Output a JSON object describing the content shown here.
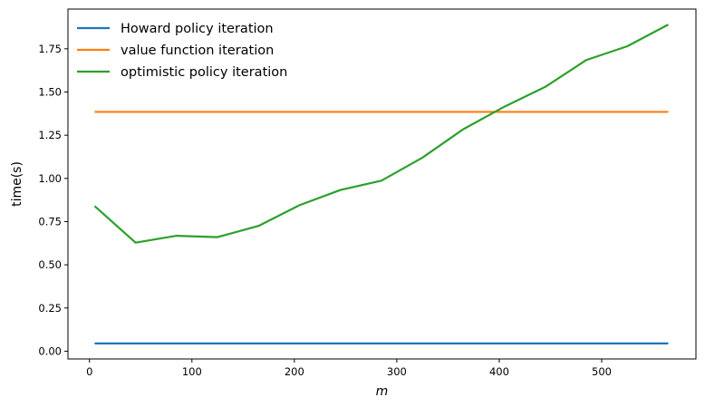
{
  "chart_data": {
    "type": "line",
    "title": "",
    "xlabel": "m",
    "ylabel": "time(s)",
    "xlim": [
      -21,
      592
    ],
    "ylim": [
      -0.045,
      1.98
    ],
    "xticks": [
      0,
      100,
      200,
      300,
      400,
      500
    ],
    "xtick_labels": [
      "0",
      "100",
      "200",
      "300",
      "400",
      "500"
    ],
    "yticks": [
      0.0,
      0.25,
      0.5,
      0.75,
      1.0,
      1.25,
      1.5,
      1.75
    ],
    "ytick_labels": [
      "0.00",
      "0.25",
      "0.50",
      "0.75",
      "1.00",
      "1.25",
      "1.50",
      "1.75"
    ],
    "grid": false,
    "legend_position": "upper-left",
    "x": [
      5,
      45,
      85,
      125,
      165,
      205,
      245,
      285,
      325,
      365,
      405,
      445,
      485,
      525,
      565
    ],
    "series": [
      {
        "name": "Howard policy iteration",
        "color": "#1f77b4",
        "values": [
          0.045,
          0.045,
          0.045,
          0.045,
          0.045,
          0.045,
          0.045,
          0.045,
          0.045,
          0.045,
          0.045,
          0.045,
          0.045,
          0.045,
          0.045
        ]
      },
      {
        "name": "value function iteration",
        "color": "#ff7f0e",
        "values": [
          1.385,
          1.385,
          1.385,
          1.385,
          1.385,
          1.385,
          1.385,
          1.385,
          1.385,
          1.385,
          1.385,
          1.385,
          1.385,
          1.385,
          1.385
        ]
      },
      {
        "name": "optimistic policy iteration",
        "color": "#2ca02c",
        "values": [
          0.84,
          0.628,
          0.668,
          0.66,
          0.725,
          0.845,
          0.933,
          0.987,
          1.12,
          1.285,
          1.415,
          1.53,
          1.685,
          1.765,
          1.89
        ]
      }
    ]
  }
}
